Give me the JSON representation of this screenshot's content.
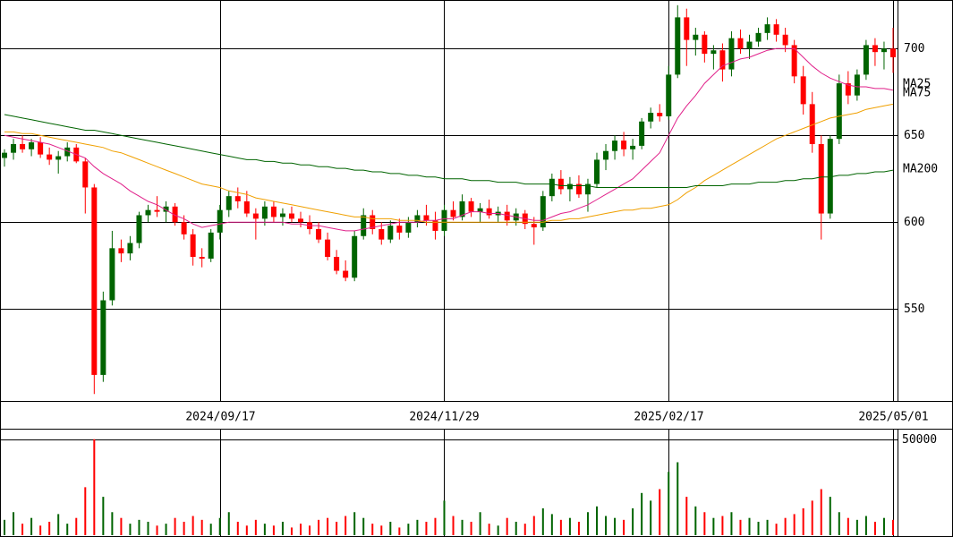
{
  "chart_data": [
    {
      "type": "candlestick",
      "categories": [
        null,
        null,
        null,
        null,
        null,
        null,
        null,
        null,
        null,
        null,
        null,
        null,
        null,
        null,
        null,
        null,
        null,
        null,
        null,
        null,
        null,
        null,
        null,
        null,
        "2024/09/17",
        null,
        null,
        null,
        null,
        null,
        null,
        null,
        null,
        null,
        null,
        null,
        null,
        null,
        null,
        null,
        null,
        null,
        null,
        null,
        null,
        null,
        null,
        null,
        null,
        "2024/11/29",
        null,
        null,
        null,
        null,
        null,
        null,
        null,
        null,
        null,
        null,
        null,
        null,
        null,
        null,
        null,
        null,
        null,
        null,
        null,
        null,
        null,
        null,
        null,
        null,
        "2025/02/17",
        null,
        null,
        null,
        null,
        null,
        null,
        null,
        null,
        null,
        null,
        null,
        null,
        null,
        null,
        null,
        null,
        null,
        null,
        null,
        null,
        null,
        null,
        null,
        null,
        "2025/05/01"
      ],
      "open": [
        637,
        640,
        645,
        642,
        646,
        639,
        636,
        638,
        643,
        635,
        620,
        512,
        555,
        585,
        582,
        588,
        604,
        607,
        606,
        609,
        600,
        593,
        580,
        579,
        594,
        607,
        615,
        612,
        605,
        602,
        609,
        603,
        605,
        602,
        600,
        596,
        590,
        580,
        572,
        568,
        592,
        604,
        596,
        590,
        598,
        594,
        600,
        604,
        601,
        595,
        607,
        603,
        612,
        606,
        608,
        604,
        606,
        601,
        605,
        599,
        597,
        615,
        625,
        619,
        622,
        616,
        622,
        636,
        641,
        647,
        642,
        644,
        658,
        663,
        661,
        685,
        718,
        705,
        708,
        697,
        699,
        688,
        706,
        700,
        704,
        709,
        714,
        708,
        702,
        684,
        668,
        645,
        605,
        648,
        680,
        673,
        685,
        702,
        698,
        700
      ],
      "high": [
        642,
        648,
        650,
        648,
        649,
        643,
        641,
        646,
        645,
        637,
        622,
        560,
        595,
        590,
        592,
        606,
        610,
        615,
        612,
        611,
        604,
        596,
        585,
        596,
        610,
        618,
        620,
        618,
        608,
        612,
        612,
        608,
        609,
        606,
        604,
        600,
        594,
        584,
        578,
        595,
        608,
        607,
        600,
        601,
        602,
        603,
        607,
        610,
        606,
        610,
        612,
        616,
        614,
        611,
        613,
        609,
        610,
        608,
        607,
        603,
        618,
        628,
        630,
        626,
        627,
        625,
        640,
        645,
        650,
        652,
        648,
        660,
        666,
        668,
        690,
        725,
        723,
        712,
        710,
        702,
        703,
        710,
        711,
        708,
        712,
        718,
        717,
        712,
        705,
        690,
        675,
        650,
        650,
        685,
        687,
        688,
        705,
        706,
        704,
        712
      ],
      "low": [
        632,
        636,
        640,
        638,
        637,
        633,
        628,
        635,
        634,
        605,
        501,
        508,
        552,
        577,
        578,
        585,
        600,
        603,
        600,
        598,
        590,
        575,
        574,
        577,
        590,
        603,
        608,
        603,
        590,
        598,
        600,
        598,
        600,
        597,
        593,
        588,
        578,
        570,
        566,
        566,
        590,
        593,
        587,
        588,
        590,
        591,
        597,
        598,
        590,
        592,
        601,
        601,
        603,
        600,
        602,
        600,
        598,
        598,
        596,
        587,
        595,
        612,
        616,
        612,
        614,
        606,
        620,
        630,
        636,
        638,
        636,
        642,
        654,
        658,
        659,
        683,
        690,
        696,
        692,
        688,
        681,
        684,
        697,
        694,
        701,
        705,
        704,
        698,
        680,
        662,
        640,
        590,
        602,
        645,
        668,
        670,
        682,
        690,
        688,
        686
      ],
      "close": [
        640,
        645,
        642,
        646,
        639,
        636,
        638,
        643,
        635,
        620,
        512,
        555,
        585,
        582,
        588,
        604,
        607,
        606,
        609,
        600,
        593,
        580,
        579,
        594,
        607,
        615,
        612,
        605,
        602,
        609,
        603,
        605,
        602,
        600,
        596,
        590,
        580,
        572,
        568,
        592,
        604,
        596,
        590,
        598,
        594,
        600,
        604,
        601,
        595,
        607,
        603,
        612,
        606,
        608,
        604,
        606,
        601,
        605,
        599,
        597,
        615,
        625,
        619,
        622,
        616,
        622,
        636,
        641,
        647,
        642,
        644,
        658,
        663,
        661,
        685,
        718,
        705,
        708,
        697,
        699,
        688,
        706,
        700,
        704,
        709,
        714,
        708,
        702,
        684,
        668,
        645,
        605,
        648,
        680,
        673,
        685,
        702,
        698,
        700,
        695
      ],
      "up_color": "#006400",
      "down_color": "#ff0000",
      "series": [
        {
          "name": "MA25",
          "color": "#e0208a",
          "values": [
            650,
            649,
            648,
            647,
            646,
            645,
            643,
            641,
            639,
            637,
            632,
            628,
            625,
            622,
            618,
            615,
            612,
            610,
            607,
            604,
            602,
            599,
            597,
            598,
            599,
            600,
            600,
            600,
            600,
            600,
            600,
            600,
            599,
            599,
            598,
            598,
            597,
            596,
            595,
            595,
            596,
            597,
            598,
            599,
            600,
            600,
            600,
            601,
            601,
            602,
            602,
            604,
            606,
            606,
            605,
            605,
            604,
            603,
            602,
            601,
            601,
            603,
            605,
            606,
            608,
            610,
            613,
            616,
            619,
            622,
            625,
            630,
            635,
            640,
            650,
            660,
            667,
            673,
            680,
            685,
            690,
            692,
            694,
            695,
            697,
            699,
            700,
            700,
            700,
            695,
            690,
            686,
            683,
            681,
            679,
            678,
            678,
            677,
            677,
            676
          ]
        },
        {
          "name": "MA75",
          "color": "#f0a000",
          "values": [
            652,
            652,
            651,
            651,
            650,
            649,
            648,
            647,
            646,
            645,
            644,
            643,
            641,
            640,
            638,
            636,
            634,
            632,
            630,
            628,
            626,
            624,
            622,
            621,
            620,
            618,
            617,
            616,
            614,
            613,
            612,
            611,
            610,
            609,
            608,
            607,
            606,
            605,
            604,
            603,
            603,
            602,
            602,
            602,
            601,
            601,
            601,
            600,
            600,
            600,
            600,
            600,
            600,
            600,
            600,
            600,
            600,
            600,
            600,
            600,
            600,
            601,
            601,
            602,
            602,
            603,
            604,
            605,
            606,
            607,
            607,
            608,
            608,
            609,
            610,
            613,
            617,
            620,
            624,
            627,
            630,
            633,
            636,
            639,
            642,
            645,
            648,
            650,
            652,
            654,
            656,
            658,
            660,
            661,
            662,
            663,
            665,
            666,
            667,
            668
          ]
        },
        {
          "name": "MA200",
          "color": "#006400",
          "values": [
            662,
            661,
            660,
            659,
            658,
            657,
            656,
            655,
            654,
            653,
            653,
            652,
            651,
            650,
            649,
            648,
            647,
            646,
            645,
            644,
            643,
            642,
            641,
            640,
            639,
            638,
            637,
            636,
            636,
            635,
            635,
            634,
            634,
            633,
            633,
            632,
            632,
            631,
            631,
            630,
            630,
            629,
            629,
            628,
            628,
            627,
            627,
            626,
            626,
            625,
            625,
            625,
            624,
            624,
            624,
            623,
            623,
            623,
            622,
            622,
            622,
            622,
            621,
            621,
            621,
            621,
            620,
            620,
            620,
            620,
            620,
            620,
            620,
            620,
            620,
            620,
            620,
            621,
            621,
            621,
            621,
            622,
            622,
            622,
            623,
            623,
            623,
            624,
            624,
            625,
            625,
            626,
            626,
            627,
            627,
            628,
            628,
            629,
            629,
            630
          ]
        }
      ],
      "ylim": [
        497,
        728
      ],
      "yticks": [
        550,
        600,
        650,
        700
      ],
      "grid": true
    },
    {
      "type": "bar",
      "values": [
        8000,
        12000,
        6000,
        9000,
        5000,
        7000,
        11000,
        6000,
        9000,
        25000,
        50000,
        20000,
        12000,
        9000,
        6000,
        8000,
        7000,
        5000,
        6000,
        9000,
        7000,
        10000,
        8000,
        6000,
        9000,
        12000,
        7000,
        5000,
        8000,
        6000,
        5000,
        7000,
        4000,
        6000,
        5000,
        8000,
        9000,
        7000,
        10000,
        12000,
        9000,
        6000,
        5000,
        7000,
        4000,
        6000,
        8000,
        7000,
        9000,
        18000,
        10000,
        8000,
        7000,
        12000,
        6000,
        5000,
        9000,
        7000,
        6000,
        10000,
        14000,
        11000,
        8000,
        9000,
        7000,
        12000,
        15000,
        10000,
        9000,
        8000,
        14000,
        22000,
        18000,
        24000,
        33000,
        38000,
        20000,
        15000,
        12000,
        9000,
        10000,
        12000,
        8000,
        9000,
        7000,
        8000,
        6000,
        9000,
        11000,
        14000,
        18000,
        24000,
        20000,
        12000,
        9000,
        8000,
        10000,
        7000,
        9000,
        8000
      ],
      "ylim": [
        0,
        55000
      ],
      "yticks": [
        50000
      ],
      "grid": true
    }
  ]
}
